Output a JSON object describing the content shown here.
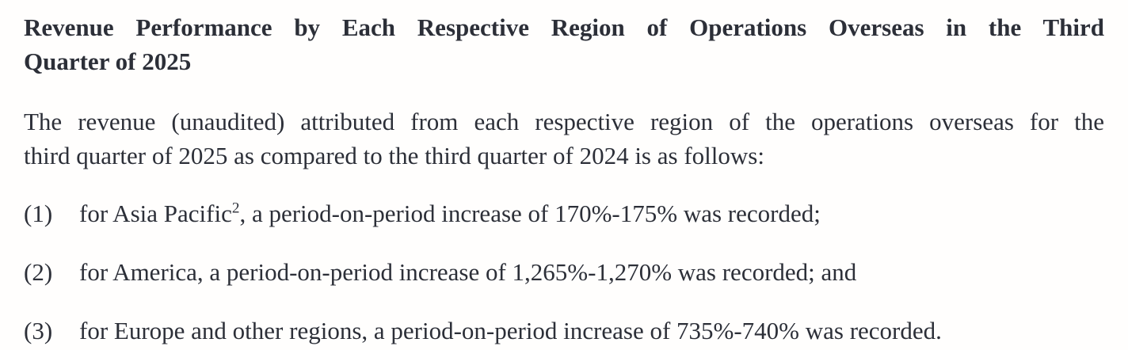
{
  "page": {
    "background_color": "#fffefd",
    "text_color": "#2c2f38"
  },
  "heading": {
    "line1": "Revenue Performance by Each Respective Region of Operations Overseas in the Third",
    "line2": "Quarter of 2025"
  },
  "intro": {
    "line1": "The revenue (unaudited) attributed from each respective region of the operations overseas for the",
    "line2": "third quarter of 2025 as compared to the third quarter of 2024 is as follows:"
  },
  "items": [
    {
      "marker": "(1)",
      "pre": "for Asia Pacific",
      "sup": "2",
      "post": ", a period-on-period increase of 170%-175% was recorded;"
    },
    {
      "marker": "(2)",
      "pre": "for America, a period-on-period increase of 1,265%-1,270% was recorded; and",
      "sup": "",
      "post": ""
    },
    {
      "marker": "(3)",
      "pre": "for Europe and other regions, a period-on-period increase of 735%-740% was recorded.",
      "sup": "",
      "post": ""
    }
  ]
}
